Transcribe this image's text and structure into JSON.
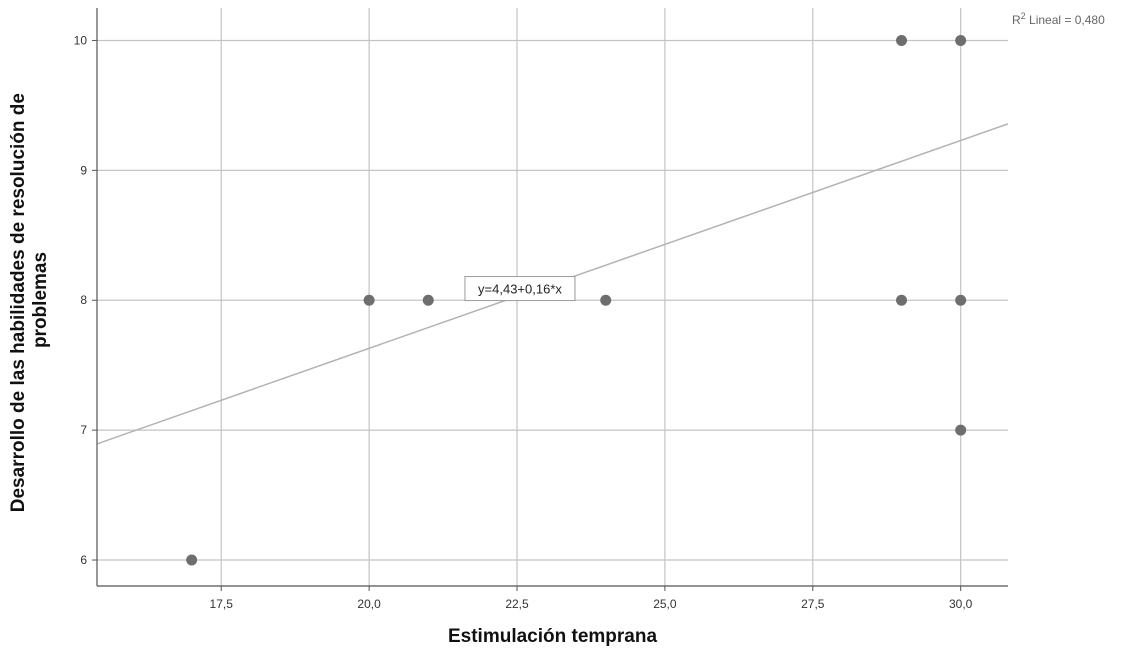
{
  "chart_data": {
    "type": "scatter",
    "title": "",
    "xlabel": "Estimulación temprana",
    "ylabel": "Desarrollo de las habilidades de resolución de problemas",
    "ylabel_lines": [
      "Desarrollo de las habilidades de resolución de",
      "problemas"
    ],
    "xlim": [
      15.4,
      30.8
    ],
    "ylim": [
      5.8,
      10.25
    ],
    "x_ticks": [
      17.5,
      20.0,
      22.5,
      25.0,
      27.5,
      30.0
    ],
    "x_tick_labels": [
      "17,5",
      "20,0",
      "22,5",
      "25,0",
      "27,5",
      "30,0"
    ],
    "y_ticks": [
      6,
      7,
      8,
      9,
      10
    ],
    "y_tick_labels": [
      "6",
      "7",
      "8",
      "9",
      "10"
    ],
    "grid": true,
    "points": [
      {
        "x": 17,
        "y": 6
      },
      {
        "x": 20,
        "y": 8
      },
      {
        "x": 21,
        "y": 8
      },
      {
        "x": 24,
        "y": 8
      },
      {
        "x": 29,
        "y": 8
      },
      {
        "x": 30,
        "y": 8
      },
      {
        "x": 30,
        "y": 7
      },
      {
        "x": 29,
        "y": 10
      },
      {
        "x": 30,
        "y": 10
      }
    ],
    "fit_line": {
      "intercept": 4.43,
      "slope": 0.16
    },
    "fit_label": "y=4,43+0,16*x",
    "r2_prefix": "R",
    "r2_sup": "2",
    "r2_text": " Lineal = 0,480",
    "colors": {
      "point": "#6e6e6e",
      "grid": "#c4c4c4",
      "fit_line": "#b3b3b3",
      "axis": "#555555"
    }
  }
}
